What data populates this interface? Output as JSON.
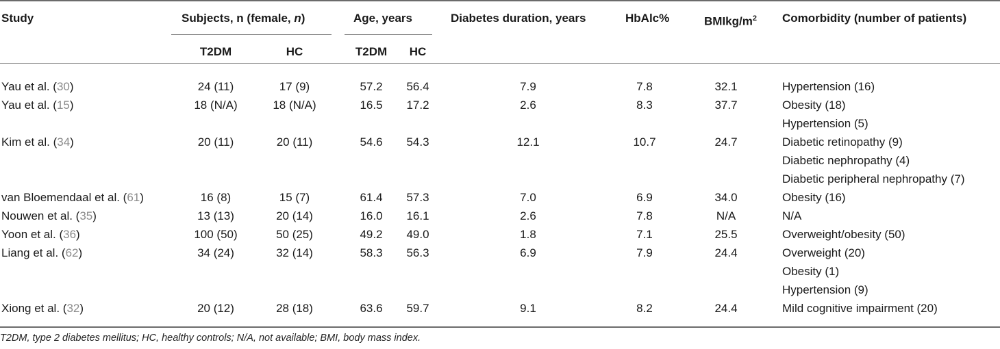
{
  "headers": {
    "study": "Study",
    "subjects_prefix": "Subjects, n (female, ",
    "subjects_italic": "n",
    "subjects_suffix": ")",
    "age": "Age, years",
    "duration": "Diabetes duration, years",
    "hba1c": "HbAlc%",
    "bmi": "BMIkg/m",
    "bmi_sup": "2",
    "comorbidity": "Comorbidity (number of patients)",
    "t2dm": "T2DM",
    "hc": "HC",
    "age_t2dm": "T2DM",
    "age_hc": "HC"
  },
  "rows": [
    {
      "study": "Yau et al. (",
      "ref": "30",
      "close": ")",
      "subj_t2dm": "24 (11)",
      "subj_hc": "17 (9)",
      "age_t2dm": "57.2",
      "age_hc": "56.4",
      "duration": "7.9",
      "hba1c": "7.8",
      "bmi": "32.1",
      "comorbidity": [
        "Hypertension (16)"
      ]
    },
    {
      "study": "Yau et al. (",
      "ref": "15",
      "close": ")",
      "subj_t2dm": "18 (N/A)",
      "subj_hc": "18 (N/A)",
      "age_t2dm": "16.5",
      "age_hc": "17.2",
      "duration": "2.6",
      "hba1c": "8.3",
      "bmi": "37.7",
      "comorbidity": [
        "Obesity (18)",
        "Hypertension (5)"
      ]
    },
    {
      "study": "Kim et al. (",
      "ref": "34",
      "close": ")",
      "subj_t2dm": "20 (11)",
      "subj_hc": "20 (11)",
      "age_t2dm": "54.6",
      "age_hc": "54.3",
      "duration": "12.1",
      "hba1c": "10.7",
      "bmi": "24.7",
      "comorbidity": [
        "Diabetic retinopathy (9)",
        "Diabetic nephropathy (4)",
        "Diabetic peripheral nephropathy (7)"
      ]
    },
    {
      "study": "van Bloemendaal et al. (",
      "ref": "61",
      "close": ")",
      "subj_t2dm": "16 (8)",
      "subj_hc": "15 (7)",
      "age_t2dm": "61.4",
      "age_hc": "57.3",
      "duration": "7.0",
      "hba1c": "6.9",
      "bmi": "34.0",
      "comorbidity": [
        "Obesity (16)"
      ]
    },
    {
      "study": "Nouwen et al. (",
      "ref": "35",
      "close": ")",
      "subj_t2dm": "13 (13)",
      "subj_hc": "20 (14)",
      "age_t2dm": "16.0",
      "age_hc": "16.1",
      "duration": "2.6",
      "hba1c": "7.8",
      "bmi": "N/A",
      "comorbidity": [
        "N/A"
      ]
    },
    {
      "study": "Yoon et al. (",
      "ref": "36",
      "close": ")",
      "subj_t2dm": "100 (50)",
      "subj_hc": "50 (25)",
      "age_t2dm": "49.2",
      "age_hc": "49.0",
      "duration": "1.8",
      "hba1c": "7.1",
      "bmi": "25.5",
      "comorbidity": [
        "Overweight/obesity (50)"
      ]
    },
    {
      "study": "Liang et al. (",
      "ref": "62",
      "close": ")",
      "subj_t2dm": "34 (24)",
      "subj_hc": "32 (14)",
      "age_t2dm": "58.3",
      "age_hc": "56.3",
      "duration": "6.9",
      "hba1c": "7.9",
      "bmi": "24.4",
      "comorbidity": [
        "Overweight (20)",
        "Obesity (1)",
        "Hypertension (9)"
      ]
    },
    {
      "study": "Xiong et al. (",
      "ref": "32",
      "close": ")",
      "subj_t2dm": "20 (12)",
      "subj_hc": "28 (18)",
      "age_t2dm": "63.6",
      "age_hc": "59.7",
      "duration": "9.1",
      "hba1c": "8.2",
      "bmi": "24.4",
      "comorbidity": [
        "Mild cognitive impairment (20)"
      ]
    }
  ],
  "footnote": "T2DM, type 2 diabetes mellitus; HC, healthy controls; N/A, not available; BMI, body mass index."
}
